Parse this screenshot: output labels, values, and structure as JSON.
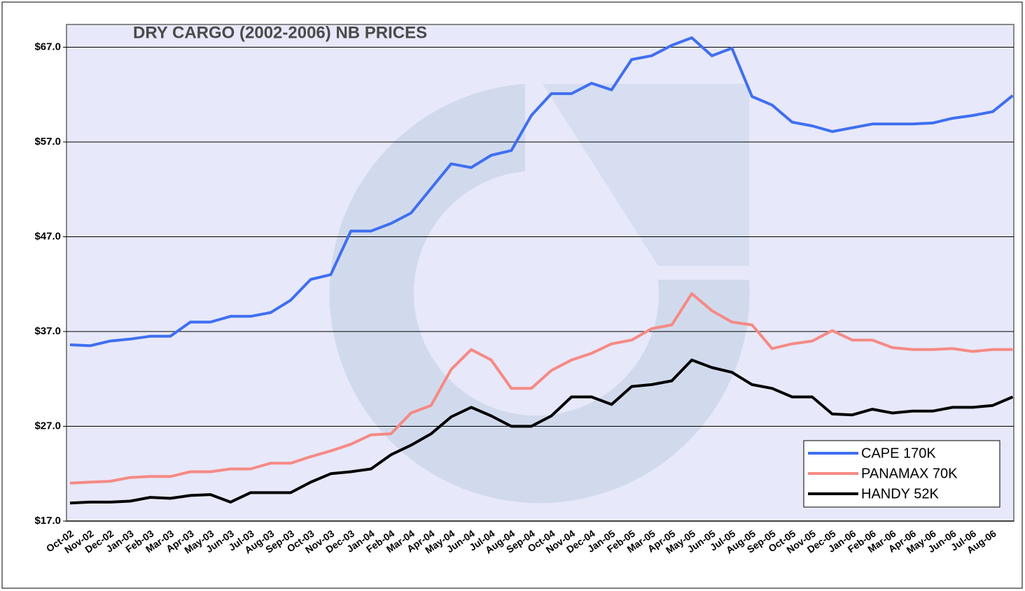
{
  "chart_data": {
    "type": "line",
    "title": "DRY CARGO (2002-2006) NB PRICES",
    "categories": [
      "Oct-02",
      "Nov-02",
      "Dec-02",
      "Jan-03",
      "Feb-03",
      "Mar-03",
      "Apr-03",
      "May-03",
      "Jun-03",
      "Jul-03",
      "Aug-03",
      "Sep-03",
      "Oct-03",
      "Nov-03",
      "Dec-03",
      "Jan-04",
      "Feb-04",
      "Mar-04",
      "Apr-04",
      "May-04",
      "Jun-04",
      "Jul-04",
      "Aug-04",
      "Sep-04",
      "Oct-04",
      "Nov-04",
      "Dec-04",
      "Jan-05",
      "Feb-05",
      "Mar-05",
      "Apr-05",
      "May-05",
      "Jun-05",
      "Jul-05",
      "Aug-05",
      "Sep-05",
      "Oct-05",
      "Nov-05",
      "Dec-05",
      "Jan-06",
      "Feb-06",
      "Mar-06",
      "Apr-06",
      "May-06",
      "Jun-06",
      "Jul-06",
      "Aug-06",
      null
    ],
    "series": [
      {
        "name": "CAPE 170K",
        "color": "#3f6ff0",
        "values": [
          35.6,
          35.5,
          36.0,
          36.2,
          36.5,
          36.5,
          38.0,
          38.0,
          38.6,
          38.6,
          39.0,
          40.3,
          42.5,
          43.0,
          47.6,
          47.6,
          48.4,
          49.5,
          52.1,
          54.7,
          54.3,
          55.6,
          56.1,
          59.8,
          62.1,
          62.1,
          63.2,
          62.5,
          65.7,
          66.1,
          67.2,
          68.0,
          66.1,
          66.9,
          61.8,
          60.9,
          59.1,
          58.7,
          58.1,
          58.5,
          58.9,
          58.9,
          58.9,
          59.0,
          59.5,
          59.8,
          60.2,
          61.9
        ]
      },
      {
        "name": "PANAMAX 70K",
        "color": "#f58a84",
        "values": [
          21.0,
          21.1,
          21.2,
          21.6,
          21.7,
          21.7,
          22.2,
          22.2,
          22.5,
          22.5,
          23.1,
          23.1,
          23.8,
          24.4,
          25.1,
          26.1,
          26.2,
          28.4,
          29.2,
          33.0,
          35.1,
          34.0,
          31.0,
          31.0,
          32.9,
          34.0,
          34.7,
          35.7,
          36.1,
          37.3,
          37.7,
          41.0,
          39.2,
          38.0,
          37.7,
          35.2,
          35.7,
          36.0,
          37.1,
          36.1,
          36.1,
          35.3,
          35.1,
          35.1,
          35.2,
          34.9,
          35.1,
          35.1
        ]
      },
      {
        "name": "HANDY 52K",
        "color": "#000000",
        "values": [
          18.9,
          19.0,
          19.0,
          19.1,
          19.5,
          19.4,
          19.7,
          19.8,
          19.0,
          20.0,
          20.0,
          20.0,
          21.1,
          22.0,
          22.2,
          22.5,
          24.0,
          25.0,
          26.2,
          28.0,
          29.0,
          28.1,
          27.0,
          27.0,
          28.1,
          30.1,
          30.1,
          29.3,
          31.2,
          31.4,
          31.8,
          34.0,
          33.2,
          32.7,
          31.4,
          31.0,
          30.1,
          30.1,
          28.3,
          28.2,
          28.8,
          28.4,
          28.6,
          28.6,
          29.0,
          29.0,
          29.2,
          30.1
        ]
      }
    ],
    "ylim": [
      17,
      69.4
    ],
    "yticks": [
      {
        "value": 17,
        "label": "$17.0"
      },
      {
        "value": 27,
        "label": "$27.0"
      },
      {
        "value": 37,
        "label": "$37.0"
      },
      {
        "value": 47,
        "label": "$47.0"
      },
      {
        "value": 57,
        "label": "$57.0"
      },
      {
        "value": 67,
        "label": "$67.0"
      }
    ],
    "grid": true,
    "legend": "lower right"
  }
}
